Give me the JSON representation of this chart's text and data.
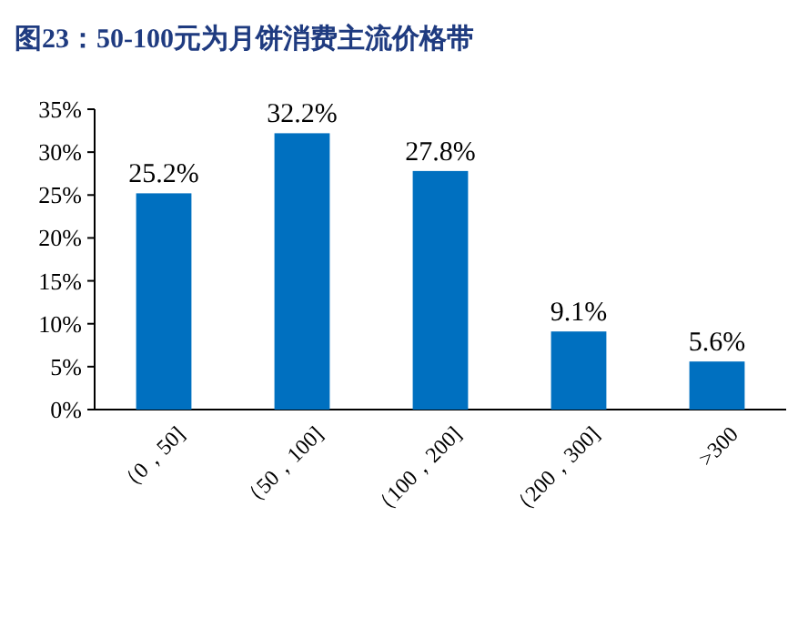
{
  "chart_data": {
    "type": "bar",
    "title": "图23：50-100元为月饼消费主流价格带",
    "categories": [
      "（0，50]",
      "（50，100]",
      "（100，200]",
      "（200，300]",
      ">300"
    ],
    "values": [
      25.2,
      32.2,
      27.8,
      9.1,
      5.6
    ],
    "value_labels": [
      "25.2%",
      "32.2%",
      "27.8%",
      "9.1%",
      "5.6%"
    ],
    "color": "#0070c0",
    "ylim": [
      0,
      35
    ],
    "yticks": [
      {
        "value": 0,
        "label": "0%"
      },
      {
        "value": 5,
        "label": "5%"
      },
      {
        "value": 10,
        "label": "10%"
      },
      {
        "value": 15,
        "label": "15%"
      },
      {
        "value": 20,
        "label": "20%"
      },
      {
        "value": 25,
        "label": "25%"
      },
      {
        "value": 30,
        "label": "30%"
      },
      {
        "value": 35,
        "label": "35%"
      }
    ],
    "grid": false
  }
}
